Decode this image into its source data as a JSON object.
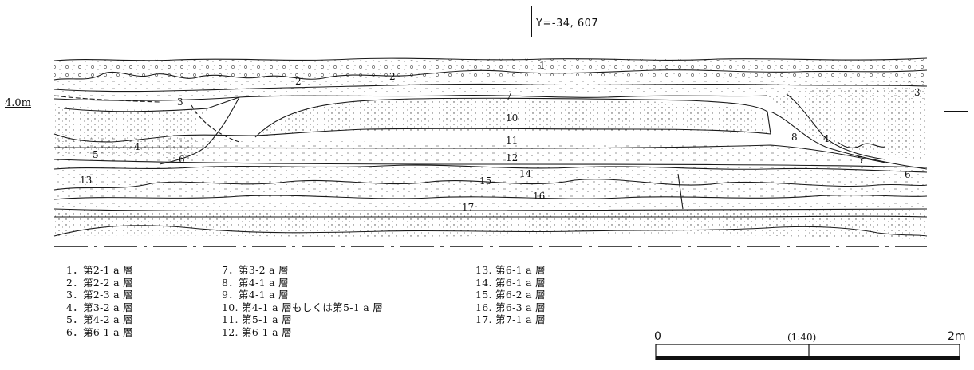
{
  "coordinate_label": "Y=-34, 607",
  "elevation_label": "4.0m",
  "layer_numbers": [
    "1",
    "2",
    "2",
    "3",
    "3",
    "7",
    "10",
    "11",
    "12",
    "14",
    "15",
    "16",
    "17",
    "4",
    "5",
    "6",
    "13",
    "8",
    "4",
    "5",
    "6",
    "3"
  ],
  "legend": {
    "col1": [
      "1．第2-1 a 層",
      "2．第2-2 a 層",
      "3．第2-3 a 層",
      "4．第3-2 a 層",
      "5．第4-2 a 層",
      "6．第6-1 a 層"
    ],
    "col2": [
      "7．第3-2 a 層",
      "8．第4-1 a 層",
      "9．第4-1 a 層",
      "10. 第4-1 a 層もしくは第5-1 a 層",
      "11. 第5-1 a 層",
      "12. 第6-1 a 層"
    ],
    "col3": [
      "13. 第6-1 a 層",
      "14. 第6-1 a 層",
      "15. 第6-2 a 層",
      "16. 第6-3 a 層",
      "17. 第7-1 a 層"
    ]
  },
  "scale_bar": {
    "start": "0",
    "ratio": "(1:40)",
    "end": "2m"
  }
}
